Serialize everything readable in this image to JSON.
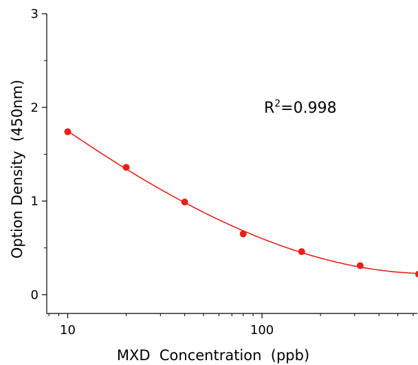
{
  "chart_data": {
    "type": "scatter",
    "xlabel": "MXD  Concentration  (ppb)",
    "ylabel": "Option Density  (450nm)",
    "x_scale": "log",
    "xlim": [
      7.8,
      630
    ],
    "ylim": [
      -0.2,
      3.0
    ],
    "x_ticks": [
      10,
      100
    ],
    "x_tick_labels": [
      "10",
      "100"
    ],
    "y_ticks": [
      0,
      1,
      2,
      3
    ],
    "y_tick_labels": [
      "0",
      "1",
      "2",
      "3"
    ],
    "grid": false,
    "color": "#e8201a",
    "annotation": {
      "prefix": "R",
      "sup": "2",
      "rest": "=0.998"
    },
    "series": [
      {
        "x": [
          10,
          20,
          40,
          80,
          160,
          320,
          640
        ],
        "y": [
          1.74,
          1.36,
          0.99,
          0.65,
          0.46,
          0.31,
          0.22
        ]
      }
    ]
  }
}
